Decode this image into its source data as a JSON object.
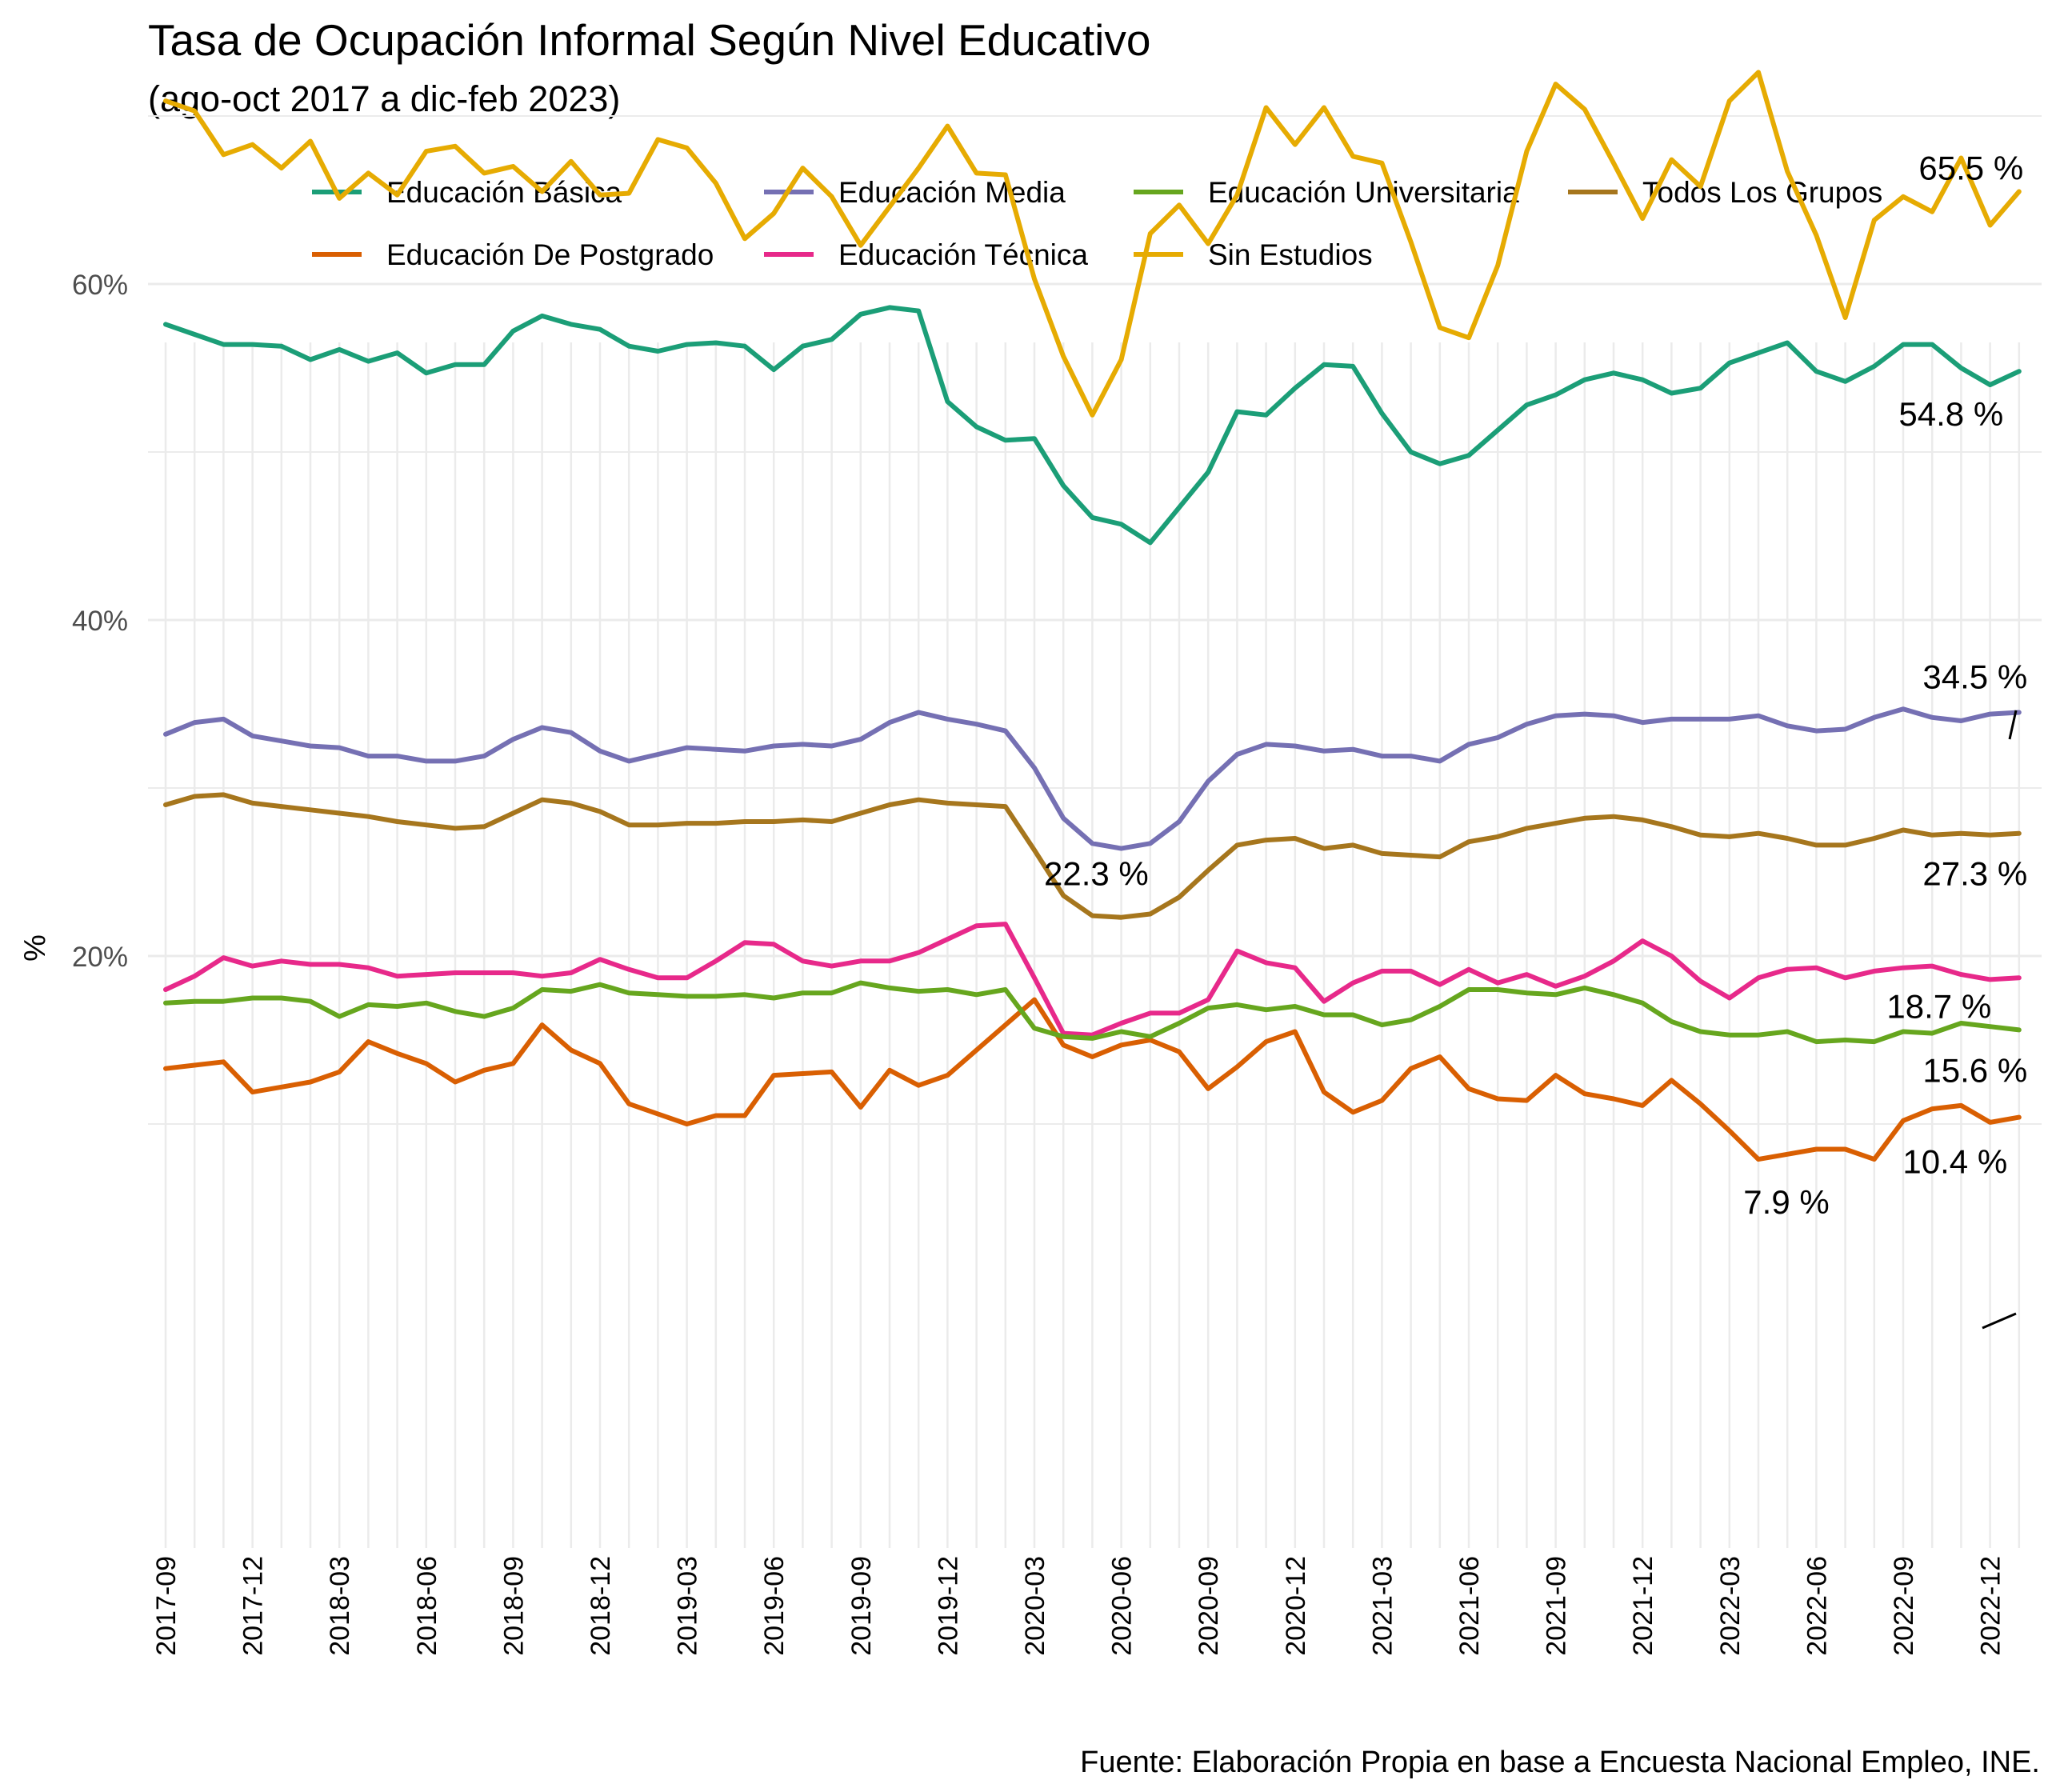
{
  "chart_data": {
    "type": "line",
    "title": "Tasa de Ocupación Informal Según Nivel Educativo",
    "subtitle": "(ago-oct 2017 a dic-feb 2023)",
    "caption": "Fuente: Elaboración Propia en base a Encuesta Nacional Empleo, INE.",
    "ylabel": "%",
    "xlabel": "",
    "ylim": [
      5,
      75
    ],
    "y_ticks": [
      20,
      40,
      60
    ],
    "y_tick_labels": [
      "20%",
      "40%",
      "60%"
    ],
    "x_tick_labels": [
      "2017-09",
      "2017-12",
      "2018-03",
      "2018-06",
      "2018-09",
      "2018-12",
      "2019-03",
      "2019-06",
      "2019-09",
      "2019-12",
      "2020-03",
      "2020-06",
      "2020-09",
      "2020-12",
      "2021-03",
      "2021-06",
      "2021-09",
      "2021-12",
      "2022-03",
      "2022-06",
      "2022-09",
      "2022-12"
    ],
    "x_start": "2017-09",
    "grid": true,
    "legend_position": "top",
    "series": [
      {
        "name": "Educación Básica",
        "color": "#1B9E77",
        "values": [
          57.6,
          57.0,
          56.4,
          56.4,
          56.3,
          55.5,
          56.1,
          55.4,
          55.9,
          54.7,
          55.2,
          55.2,
          57.2,
          58.1,
          57.6,
          57.3,
          56.3,
          56.0,
          56.4,
          56.5,
          56.3,
          54.9,
          56.3,
          56.7,
          58.2,
          58.6,
          58.4,
          53.0,
          51.5,
          50.7,
          50.8,
          48.0,
          46.1,
          45.7,
          44.6,
          46.7,
          48.8,
          52.4,
          52.2,
          53.8,
          55.2,
          55.1,
          52.3,
          50.0,
          49.3,
          49.8,
          51.3,
          52.8,
          53.4,
          54.3,
          54.7,
          54.3,
          53.5,
          53.8,
          55.3,
          55.9,
          56.5,
          54.8,
          54.2,
          55.1,
          56.4,
          56.4,
          55.0,
          54.0,
          54.8
        ]
      },
      {
        "name": "Educación De Postgrado",
        "color": "#D95F02",
        "values": [
          13.3,
          13.5,
          13.7,
          11.9,
          12.2,
          12.5,
          13.1,
          14.9,
          14.2,
          13.6,
          12.5,
          13.2,
          13.6,
          15.9,
          14.4,
          13.6,
          11.2,
          10.6,
          10.0,
          10.5,
          10.5,
          12.9,
          13.0,
          13.1,
          11.0,
          13.2,
          12.3,
          12.9,
          14.4,
          15.9,
          17.4,
          14.7,
          14.0,
          14.7,
          15.0,
          14.3,
          12.1,
          13.4,
          14.9,
          15.5,
          11.9,
          10.7,
          11.4,
          13.3,
          14.0,
          12.1,
          11.5,
          11.4,
          12.9,
          11.8,
          11.5,
          11.1,
          12.6,
          11.2,
          9.6,
          7.9,
          8.2,
          8.5,
          8.5,
          7.9,
          10.2,
          10.9,
          11.1,
          10.1,
          10.4
        ]
      },
      {
        "name": "Educación Media",
        "color": "#7570B3",
        "values": [
          33.2,
          33.9,
          34.1,
          33.1,
          32.8,
          32.5,
          32.4,
          31.9,
          31.9,
          31.6,
          31.6,
          31.9,
          32.9,
          33.6,
          33.3,
          32.2,
          31.6,
          32.0,
          32.4,
          32.3,
          32.2,
          32.5,
          32.6,
          32.5,
          32.9,
          33.9,
          34.5,
          34.1,
          33.8,
          33.4,
          31.2,
          28.2,
          26.7,
          26.4,
          26.7,
          28.0,
          30.4,
          32.0,
          32.6,
          32.5,
          32.2,
          32.3,
          31.9,
          31.9,
          31.6,
          32.6,
          33.0,
          33.8,
          34.3,
          34.4,
          34.3,
          33.9,
          34.1,
          34.1,
          34.1,
          34.3,
          33.7,
          33.4,
          33.5,
          34.2,
          34.7,
          34.2,
          34.0,
          34.4,
          34.5
        ]
      },
      {
        "name": "Educación Técnica",
        "color": "#E7298A",
        "values": [
          18.0,
          18.8,
          19.9,
          19.4,
          19.7,
          19.5,
          19.5,
          19.3,
          18.8,
          18.9,
          19.0,
          19.0,
          19.0,
          18.8,
          19.0,
          19.8,
          19.2,
          18.7,
          18.7,
          19.7,
          20.8,
          20.7,
          19.7,
          19.4,
          19.7,
          19.7,
          20.2,
          21.0,
          21.8,
          21.9,
          18.7,
          15.4,
          15.3,
          16.0,
          16.6,
          16.6,
          17.4,
          20.3,
          19.6,
          19.3,
          17.3,
          18.4,
          19.1,
          19.1,
          18.3,
          19.2,
          18.4,
          18.9,
          18.2,
          18.8,
          19.7,
          20.9,
          20.0,
          18.5,
          17.5,
          18.7,
          19.2,
          19.3,
          18.7,
          19.1,
          19.3,
          19.4,
          18.9,
          18.6,
          18.7
        ]
      },
      {
        "name": "Educación Universitaria",
        "color": "#66A61E",
        "values": [
          17.2,
          17.3,
          17.3,
          17.5,
          17.5,
          17.3,
          16.4,
          17.1,
          17.0,
          17.2,
          16.7,
          16.4,
          16.9,
          18.0,
          17.9,
          18.3,
          17.8,
          17.7,
          17.6,
          17.6,
          17.7,
          17.5,
          17.8,
          17.8,
          18.4,
          18.1,
          17.9,
          18.0,
          17.7,
          18.0,
          15.7,
          15.2,
          15.1,
          15.5,
          15.2,
          16.0,
          16.9,
          17.1,
          16.8,
          17.0,
          16.5,
          16.5,
          15.9,
          16.2,
          17.0,
          18.0,
          18.0,
          17.8,
          17.7,
          18.1,
          17.7,
          17.2,
          16.1,
          15.5,
          15.3,
          15.3,
          15.5,
          14.9,
          15.0,
          14.9,
          15.5,
          15.4,
          16.0,
          15.8,
          15.6
        ]
      },
      {
        "name": "Sin Estudios",
        "color": "#E6AB02",
        "values": [
          70.9,
          70.3,
          67.7,
          68.3,
          66.9,
          68.5,
          65.1,
          66.6,
          65.3,
          67.9,
          68.2,
          66.6,
          67.0,
          65.5,
          67.3,
          65.3,
          65.4,
          68.6,
          68.1,
          66.0,
          62.7,
          64.2,
          66.9,
          65.2,
          62.3,
          64.6,
          66.9,
          69.4,
          66.6,
          66.5,
          60.3,
          55.7,
          52.2,
          55.5,
          63.0,
          64.7,
          62.4,
          65.3,
          70.5,
          68.3,
          70.5,
          67.6,
          67.2,
          62.5,
          57.4,
          56.8,
          61.1,
          67.9,
          71.9,
          70.4,
          67.2,
          63.9,
          67.4,
          65.8,
          70.9,
          72.6,
          66.7,
          62.9,
          58.0,
          63.8,
          65.2,
          64.3,
          67.5,
          63.5,
          65.5
        ]
      },
      {
        "name": "Todos Los Grupos",
        "color": "#A6761D",
        "values": [
          29.0,
          29.5,
          29.6,
          29.1,
          28.9,
          28.7,
          28.5,
          28.3,
          28.0,
          27.8,
          27.6,
          27.7,
          28.5,
          29.3,
          29.1,
          28.6,
          27.8,
          27.8,
          27.9,
          27.9,
          28.0,
          28.0,
          28.1,
          28.0,
          28.5,
          29.0,
          29.3,
          29.1,
          29.0,
          28.9,
          26.3,
          23.6,
          22.4,
          22.3,
          22.5,
          23.5,
          25.1,
          26.6,
          26.9,
          27.0,
          26.4,
          26.6,
          26.1,
          26.0,
          25.9,
          26.8,
          27.1,
          27.6,
          27.9,
          28.2,
          28.3,
          28.1,
          27.7,
          27.2,
          27.1,
          27.3,
          27.0,
          26.6,
          26.6,
          27.0,
          27.5,
          27.2,
          27.3,
          27.2,
          27.3
        ]
      }
    ],
    "annotations": [
      {
        "text": "65.5 %",
        "x": "2023-01",
        "y": 65.5
      },
      {
        "text": "54.8 %",
        "x": "2023-01",
        "y": 54.8
      },
      {
        "text": "34.5 %",
        "x": "2023-01",
        "y": 34.5
      },
      {
        "text": "27.3 %",
        "x": "2023-01",
        "y": 27.3
      },
      {
        "text": "22.3 %",
        "x": "2020-05",
        "y": 22.3
      },
      {
        "text": "18.7 %",
        "x": "2023-01",
        "y": 18.7
      },
      {
        "text": "15.6 %",
        "x": "2023-01",
        "y": 15.6
      },
      {
        "text": "10.4 %",
        "x": "2023-01",
        "y": 10.4
      },
      {
        "text": "7.9 %",
        "x": "2022-04",
        "y": 7.9
      }
    ]
  }
}
